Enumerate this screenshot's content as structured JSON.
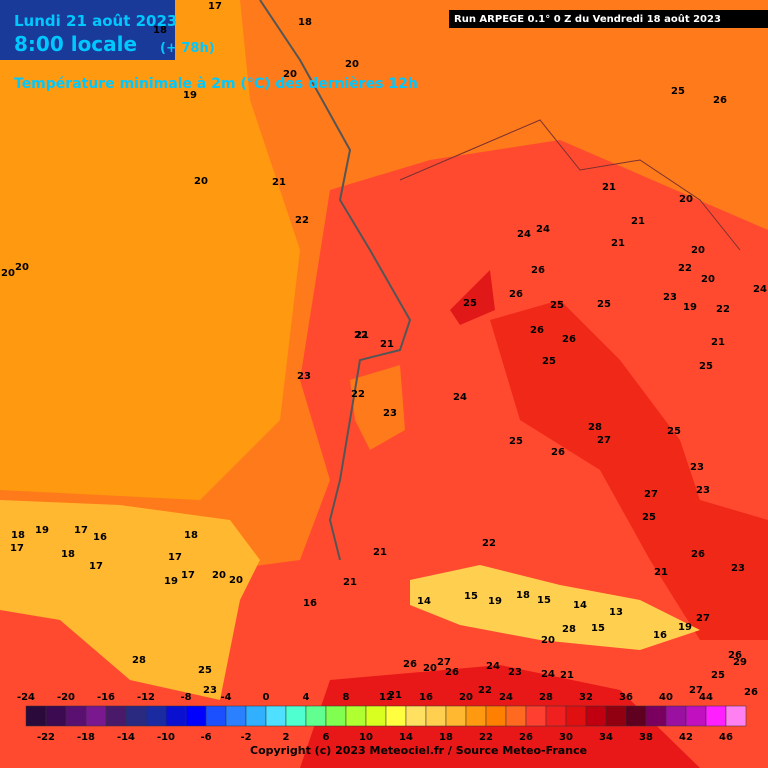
{
  "header": {
    "date": "Lundi 21 août 2023",
    "time": "8:00 locale",
    "lead": "(+ 78h)",
    "field": "Température minimale à 2m (°C) des dernières 12h",
    "run": "Run ARPEGE 0.1° 0 Z du Vendredi 18 août 2023"
  },
  "map_labels": [
    17,
    18,
    18,
    20,
    20,
    19,
    20,
    21,
    22,
    20,
    20,
    21,
    23,
    22,
    23,
    21,
    22,
    24,
    24,
    24,
    26,
    25,
    26,
    25,
    26,
    26,
    25,
    25,
    25,
    25,
    21,
    20,
    21,
    21,
    20,
    22,
    20,
    19,
    22,
    23,
    21,
    25,
    26,
    28,
    27,
    26,
    25,
    27,
    23,
    23,
    25,
    24,
    19,
    18,
    17,
    16,
    17,
    18,
    17,
    17,
    19,
    18,
    17,
    20,
    20,
    21,
    22,
    21,
    16,
    14,
    15,
    19,
    18,
    15,
    14,
    13,
    15,
    16,
    19,
    20,
    28,
    26,
    27,
    29,
    26,
    27,
    26,
    24,
    23,
    24,
    21,
    22,
    21,
    20,
    25,
    28,
    27,
    25,
    26,
    23,
    21,
    26,
    23
  ],
  "colorbar": {
    "ticks": [
      -24,
      -22,
      -20,
      -18,
      -16,
      -14,
      -12,
      -10,
      -8,
      -6,
      -4,
      -2,
      0,
      2,
      4,
      6,
      8,
      10,
      12,
      14,
      16,
      18,
      20,
      22,
      24,
      26,
      28,
      30,
      32,
      34,
      36,
      38,
      40,
      42,
      44,
      46
    ],
    "colors": [
      "#2a0a3a",
      "#3c0a50",
      "#5a1070",
      "#7a1890",
      "#4a1a6a",
      "#2a2a80",
      "#1a2aa0",
      "#0a10d0",
      "#0000ff",
      "#1a50ff",
      "#2a80ff",
      "#30b0ff",
      "#50e0ff",
      "#50ffd0",
      "#60ff90",
      "#80ff50",
      "#b0ff30",
      "#d8ff20",
      "#ffff40",
      "#ffe060",
      "#ffd050",
      "#ffb830",
      "#ff9a10",
      "#ff8000",
      "#ff6a20",
      "#ff4030",
      "#f02020",
      "#e01010",
      "#c00010",
      "#900010",
      "#600020",
      "#7a0060",
      "#9a10a0",
      "#c010c0",
      "#ff20ff",
      "#ff80f0"
    ]
  },
  "footer": "Copyright (c) 2023 Meteociel.fr / Source Meteo-France"
}
